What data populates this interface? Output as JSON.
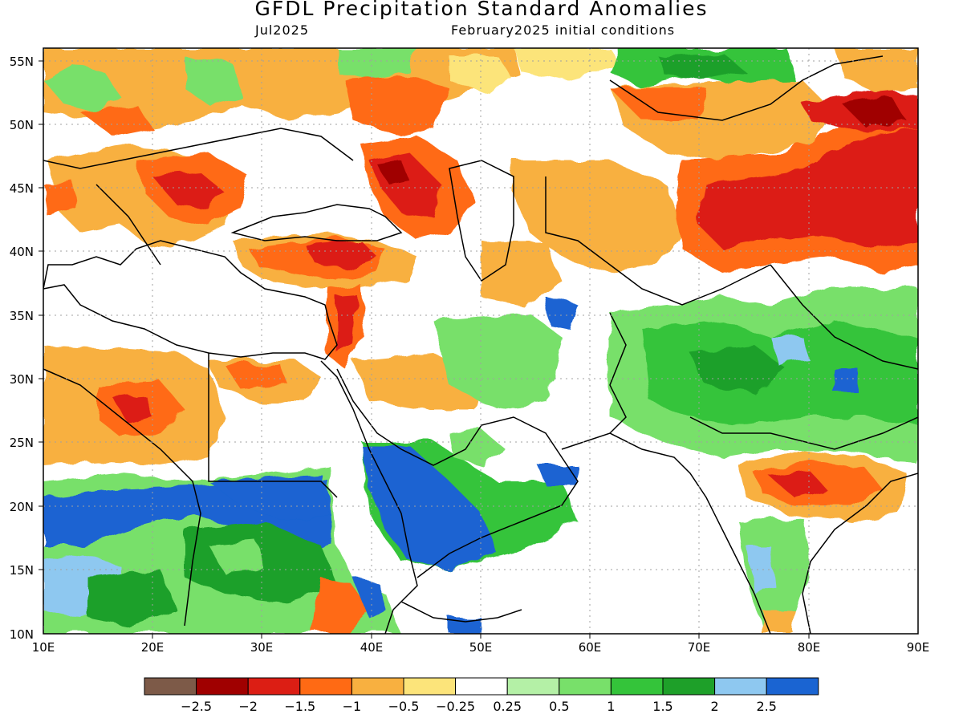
{
  "title": "GFDL Precipitation Standard Anomalies",
  "valid_month": "Jul2025",
  "initial_conditions": "February2025 initial conditions",
  "lat_labels": [
    "55N",
    "50N",
    "45N",
    "40N",
    "35N",
    "30N",
    "25N",
    "20N",
    "15N",
    "10N"
  ],
  "lon_labels": [
    "10E",
    "20E",
    "30E",
    "40E",
    "50E",
    "60E",
    "70E",
    "80E",
    "90E"
  ],
  "colorbar": {
    "colors": [
      "#7d5a48",
      "#a00000",
      "#dc1e14",
      "#ff6a14",
      "#f8b040",
      "#fce47a",
      "#ffffff",
      "#b4f0a6",
      "#78e06a",
      "#34c43a",
      "#1ea029",
      "#8ec8f0",
      "#1a64d2"
    ],
    "tick_labels": [
      "-2.5",
      "-2",
      "-1.5",
      "-1",
      "-0.5",
      "-0.25",
      "0.25",
      "0.5",
      "1",
      "1.5",
      "2",
      "2.5"
    ]
  },
  "colors": {
    "background": "#ffffff",
    "coastline": "#000000",
    "grid": "#a0a0a0"
  }
}
